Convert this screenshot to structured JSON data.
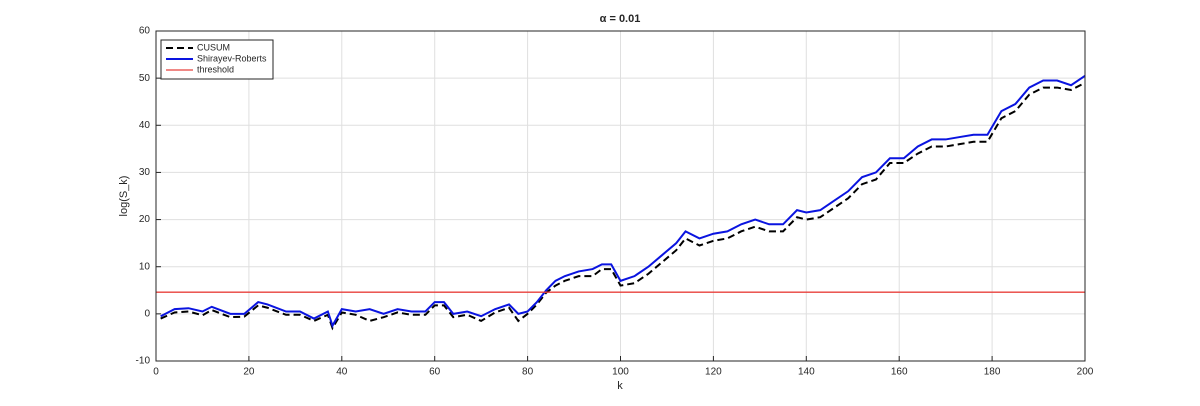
{
  "chart_data": {
    "type": "line",
    "title": "α = 0.01",
    "xlabel": "k",
    "ylabel": "log(S_k)",
    "x": [
      1,
      4,
      7,
      10,
      12,
      16,
      19,
      22,
      24,
      28,
      31,
      34,
      37,
      38,
      40,
      43,
      46,
      49,
      52,
      55,
      58,
      60,
      62,
      64,
      67,
      70,
      73,
      76,
      78,
      80,
      82,
      84,
      86,
      88,
      91,
      94,
      96,
      98,
      100,
      103,
      106,
      109,
      112,
      114,
      117,
      120,
      123,
      126,
      129,
      132,
      135,
      138,
      140,
      143,
      146,
      149,
      152,
      155,
      158,
      161,
      164,
      167,
      170,
      173,
      176,
      179,
      182,
      185,
      188,
      191,
      194,
      197,
      200
    ],
    "series": [
      {
        "name": "CUSUM",
        "color": "#000000",
        "linestyle": "dashed",
        "values": [
          -1,
          0.3,
          0.5,
          -0.3,
          0.8,
          -0.7,
          -0.6,
          1.8,
          1.3,
          -0.2,
          -0.2,
          -1.5,
          -0.2,
          -3,
          0.3,
          -0.2,
          -1.5,
          -0.7,
          0.3,
          -0.2,
          -0.2,
          1.8,
          1.8,
          -0.7,
          -0.2,
          -1.5,
          0.3,
          1.3,
          -1.5,
          0,
          2,
          4.5,
          6,
          7,
          8,
          8,
          9.5,
          9.5,
          6,
          6.5,
          8.5,
          11,
          13.5,
          16,
          14.5,
          15.5,
          16,
          17.5,
          18.5,
          17.5,
          17.5,
          20.5,
          20,
          20.5,
          22.5,
          24.5,
          27.5,
          28.5,
          32,
          32,
          34,
          35.5,
          35.5,
          36,
          36.5,
          36.5,
          41.5,
          43,
          46.5,
          48,
          48,
          47.5,
          49
        ]
      },
      {
        "name": "Shirayev-Roberts",
        "color": "#0a14e0",
        "linestyle": "solid",
        "values": [
          -0.5,
          1,
          1.2,
          0.5,
          1.5,
          0,
          0,
          2.5,
          2,
          0.5,
          0.5,
          -1,
          0.5,
          -2.5,
          1,
          0.5,
          1,
          0,
          1,
          0.5,
          0.5,
          2.5,
          2.5,
          0,
          0.5,
          -0.5,
          1,
          2,
          0,
          0.5,
          2.5,
          5,
          7,
          8,
          9,
          9.5,
          10.5,
          10.5,
          7,
          8,
          10,
          12.5,
          15,
          17.5,
          16,
          17,
          17.5,
          19,
          20,
          19,
          19,
          22,
          21.5,
          22,
          24,
          26,
          29,
          30,
          33,
          33,
          35.5,
          37,
          37,
          37.5,
          38,
          38,
          43,
          44.5,
          48,
          49.5,
          49.5,
          48.5,
          50.5
        ]
      },
      {
        "name": "threshold",
        "color": "#e8413c",
        "linestyle": "thin",
        "x": [
          0,
          200
        ],
        "values": [
          4.6,
          4.6
        ]
      }
    ],
    "xlim": [
      0,
      200
    ],
    "xticks": [
      0,
      20,
      40,
      60,
      80,
      100,
      120,
      140,
      160,
      180,
      200
    ],
    "ylim": [
      -10,
      60
    ],
    "yticks": [
      -10,
      0,
      10,
      20,
      30,
      40,
      50,
      60
    ],
    "grid": true,
    "legend": "upper left"
  }
}
